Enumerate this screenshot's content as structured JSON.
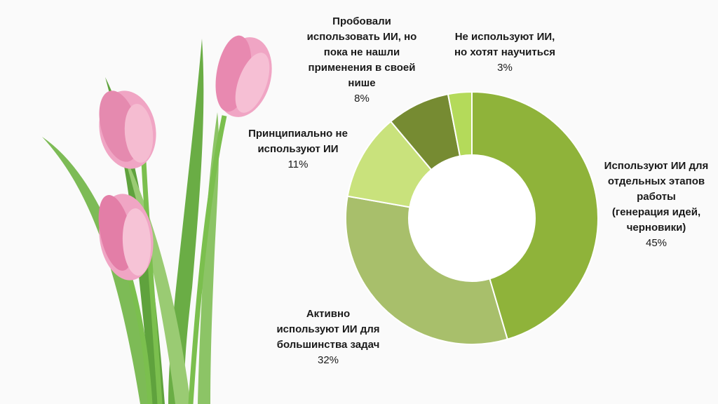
{
  "chart_data": {
    "type": "donut",
    "title": "",
    "slices": [
      {
        "label": "Используют ИИ для\nотдельных этапов\nработы\n(генерация идей,\nчерновики)",
        "value": 45,
        "value_label": "45%",
        "color": "#8fb33a"
      },
      {
        "label": "Активно\nиспользуют ИИ для\nбольшинства задач",
        "value": 32,
        "value_label": "32%",
        "color": "#a8bf6b"
      },
      {
        "label": "Принципиально не\nиспользуют ИИ",
        "value": 11,
        "value_label": "11%",
        "color": "#c9e27c"
      },
      {
        "label": "Пробовали\nиспользовать ИИ, но\nпока не нашли\nприменения в своей\nнише",
        "value": 8,
        "value_label": "8%",
        "color": "#768b32"
      },
      {
        "label": "Не используют ИИ,\nно хотят научиться",
        "value": 3,
        "value_label": "3%",
        "color": "#b4da5a"
      }
    ]
  },
  "decoration": {
    "image": "pink tulips"
  }
}
